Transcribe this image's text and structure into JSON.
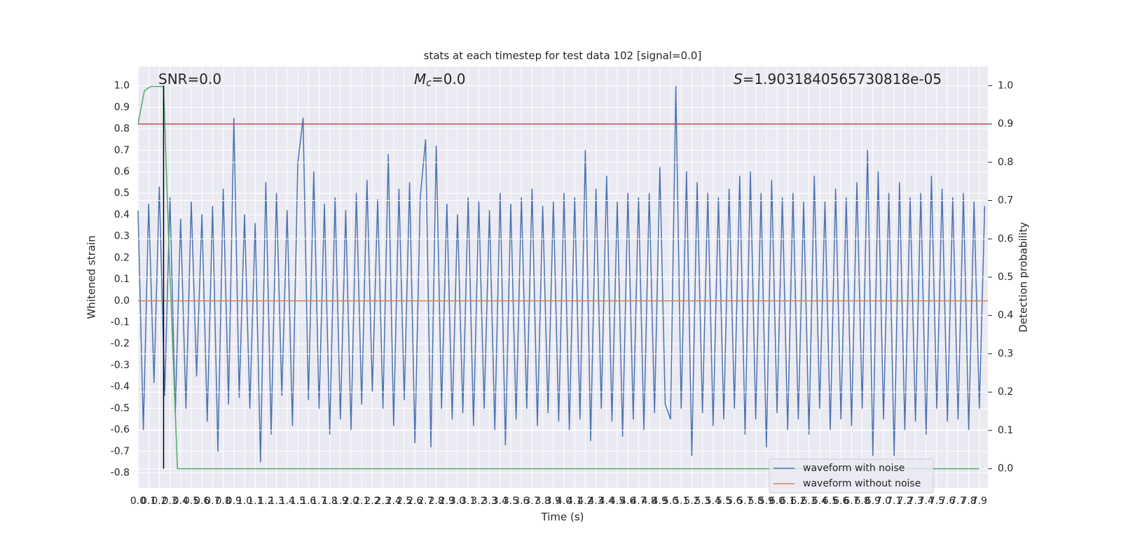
{
  "chart_data": {
    "type": "line",
    "title": "stats at each timestep for test data 102 [signal=0.0]",
    "xlabel": "Time (s)",
    "ylabel": "Whitened strain",
    "y2label": "Detection probability",
    "annotations": [
      {
        "text": "SNR=0.0"
      },
      {
        "italic": "M",
        "sub": "c",
        "text": "=0.0"
      },
      {
        "italic": "S",
        "text": "=1.9031840565730818e-05"
      }
    ],
    "xlim": [
      0,
      7.98
    ],
    "ylim": [
      -0.87,
      1.09
    ],
    "y2lim": [
      -0.05,
      1.05
    ],
    "grid": true,
    "legend": "lower right",
    "xticks": [
      {
        "value": 0,
        "label": "0.0"
      },
      0.1,
      0.2,
      0.3,
      0.4,
      0.5,
      0.6,
      0.7,
      0.8,
      0.9,
      {
        "value": 1,
        "label": "1.0"
      },
      1.1,
      1.2,
      1.3,
      1.4,
      1.5,
      1.6,
      1.7,
      1.8,
      1.9,
      {
        "value": 2,
        "label": "2.0"
      },
      2.1,
      2.2,
      2.3,
      2.4,
      2.5,
      2.6,
      2.7,
      2.8,
      2.9,
      {
        "value": 3,
        "label": "3.0"
      },
      3.1,
      3.2,
      3.3,
      3.4,
      3.5,
      3.6,
      3.7,
      3.8,
      3.9,
      {
        "value": 4,
        "label": "4.0"
      },
      4.1,
      4.2,
      4.3,
      4.4,
      4.5,
      4.6,
      4.7,
      4.8,
      4.9,
      {
        "value": 5,
        "label": "5.0"
      },
      5.1,
      5.2,
      5.3,
      5.4,
      5.5,
      5.6,
      5.7,
      5.8,
      5.9,
      {
        "value": 6,
        "label": "6.0"
      },
      6.1,
      6.2,
      6.3,
      6.4,
      6.5,
      6.6,
      6.7,
      6.8,
      6.9,
      {
        "value": 7,
        "label": "7.0"
      },
      7.1,
      7.2,
      7.3,
      7.4,
      7.5,
      7.6,
      7.7,
      7.8,
      7.9
    ],
    "yticks": [
      -0.8,
      -0.7,
      -0.6,
      -0.5,
      -0.4,
      -0.3,
      -0.2,
      -0.1,
      {
        "value": 0,
        "label": "0.0"
      },
      0.1,
      0.2,
      0.3,
      0.4,
      0.5,
      0.6,
      0.7,
      0.8,
      0.9,
      {
        "value": 1,
        "label": "1.0"
      }
    ],
    "y2ticks": [
      {
        "value": 0,
        "label": "0.0"
      },
      0.1,
      0.2,
      0.3,
      0.4,
      0.5,
      0.6,
      0.7,
      0.8,
      0.9,
      {
        "value": 1,
        "label": "1.0"
      }
    ],
    "series": [
      {
        "name": "waveform with noise",
        "color": "#4c72b0",
        "x": [
          0,
          0.05,
          0.1,
          0.15,
          0.2,
          0.25,
          0.3,
          0.35,
          0.4,
          0.45,
          0.5,
          0.55,
          0.6,
          0.65,
          0.7,
          0.75,
          0.8,
          0.85,
          0.9,
          0.95,
          1,
          1.05,
          1.1,
          1.15,
          1.2,
          1.25,
          1.3,
          1.35,
          1.4,
          1.45,
          1.5,
          1.55,
          1.6,
          1.65,
          1.7,
          1.75,
          1.8,
          1.85,
          1.9,
          1.95,
          2,
          2.05,
          2.1,
          2.15,
          2.2,
          2.25,
          2.3,
          2.35,
          2.4,
          2.45,
          2.5,
          2.55,
          2.6,
          2.65,
          2.7,
          2.75,
          2.8,
          2.85,
          2.9,
          2.95,
          3,
          3.05,
          3.1,
          3.15,
          3.2,
          3.25,
          3.3,
          3.35,
          3.4,
          3.45,
          3.5,
          3.55,
          3.6,
          3.65,
          3.7,
          3.75,
          3.8,
          3.85,
          3.9,
          3.95,
          4,
          4.05,
          4.1,
          4.15,
          4.2,
          4.25,
          4.3,
          4.35,
          4.4,
          4.45,
          4.5,
          4.55,
          4.6,
          4.65,
          4.7,
          4.75,
          4.8,
          4.85,
          4.9,
          4.95,
          5,
          5.05,
          5.1,
          5.15,
          5.2,
          5.25,
          5.3,
          5.35,
          5.4,
          5.45,
          5.5,
          5.55,
          5.6,
          5.65,
          5.7,
          5.75,
          5.8,
          5.85,
          5.9,
          5.95,
          6,
          6.05,
          6.1,
          6.15,
          6.2,
          6.25,
          6.3,
          6.35,
          6.4,
          6.45,
          6.5,
          6.55,
          6.6,
          6.65,
          6.7,
          6.75,
          6.8,
          6.85,
          6.9,
          6.95,
          7,
          7.05,
          7.1,
          7.15,
          7.2,
          7.25,
          7.3,
          7.35,
          7.4,
          7.45,
          7.5,
          7.55,
          7.6,
          7.65,
          7.7,
          7.75,
          7.8,
          7.85,
          7.9,
          7.95
        ],
        "values": [
          0.42,
          -0.6,
          0.45,
          -0.38,
          0.53,
          -0.44,
          0.48,
          -0.52,
          0.38,
          -0.5,
          0.46,
          -0.35,
          0.4,
          -0.56,
          0.44,
          -0.7,
          0.52,
          -0.48,
          0.85,
          -0.45,
          0.4,
          -0.5,
          0.36,
          -0.75,
          0.55,
          -0.62,
          0.5,
          -0.44,
          0.42,
          -0.58,
          0.64,
          0.85,
          -0.46,
          0.6,
          -0.5,
          0.45,
          -0.62,
          0.48,
          -0.55,
          0.42,
          -0.6,
          0.5,
          -0.48,
          0.56,
          -0.42,
          0.47,
          -0.5,
          0.68,
          -0.58,
          0.52,
          -0.46,
          0.55,
          -0.66,
          0.48,
          0.75,
          -0.68,
          0.72,
          -0.5,
          0.45,
          -0.55,
          0.4,
          -0.52,
          0.48,
          -0.58,
          0.46,
          -0.5,
          0.42,
          -0.6,
          0.5,
          -0.67,
          0.45,
          -0.55,
          0.48,
          -0.5,
          0.52,
          -0.58,
          0.44,
          -0.52,
          0.46,
          -0.56,
          0.5,
          -0.6,
          0.48,
          -0.55,
          0.7,
          -0.65,
          0.52,
          -0.5,
          0.58,
          -0.56,
          0.46,
          -0.63,
          0.5,
          -0.55,
          0.48,
          -0.6,
          0.5,
          -0.52,
          0.62,
          -0.48,
          -0.55,
          1.0,
          -0.5,
          0.6,
          -0.72,
          0.55,
          -0.52,
          0.5,
          -0.58,
          0.48,
          -0.55,
          0.52,
          -0.5,
          0.58,
          -0.62,
          0.6,
          -0.55,
          0.5,
          -0.68,
          0.56,
          -0.52,
          0.48,
          -0.6,
          0.5,
          -0.55,
          0.46,
          -0.62,
          0.58,
          -0.5,
          0.46,
          -0.6,
          0.52,
          -0.55,
          0.48,
          -0.58,
          0.55,
          -0.5,
          0.7,
          -0.72,
          0.6,
          -0.55,
          0.5,
          -0.72,
          0.55,
          -0.6,
          0.48,
          -0.56,
          0.5,
          -0.62,
          0.58,
          -0.5,
          0.52,
          -0.56,
          0.48,
          -0.55,
          0.5,
          -0.6,
          0.46,
          -0.5,
          0.44
        ]
      },
      {
        "name": "waveform without noise",
        "color": "#dd8452",
        "x": [
          0,
          7.98
        ],
        "values": [
          0,
          0
        ]
      }
    ],
    "detection_probability": {
      "axis": "y2",
      "color": "#55a868",
      "x": [
        0,
        0.06,
        0.12,
        0.24,
        0.29,
        0.37,
        7.9
      ],
      "values": [
        0.9,
        0.987,
        0.998,
        0.998,
        0.58,
        0,
        0
      ]
    },
    "threshold": {
      "axis": "y2",
      "color": "#c44e52",
      "value": 0.9
    },
    "vline": {
      "axis": "y2",
      "color": "#000000",
      "x": 0.24,
      "values": [
        0,
        1
      ]
    }
  }
}
